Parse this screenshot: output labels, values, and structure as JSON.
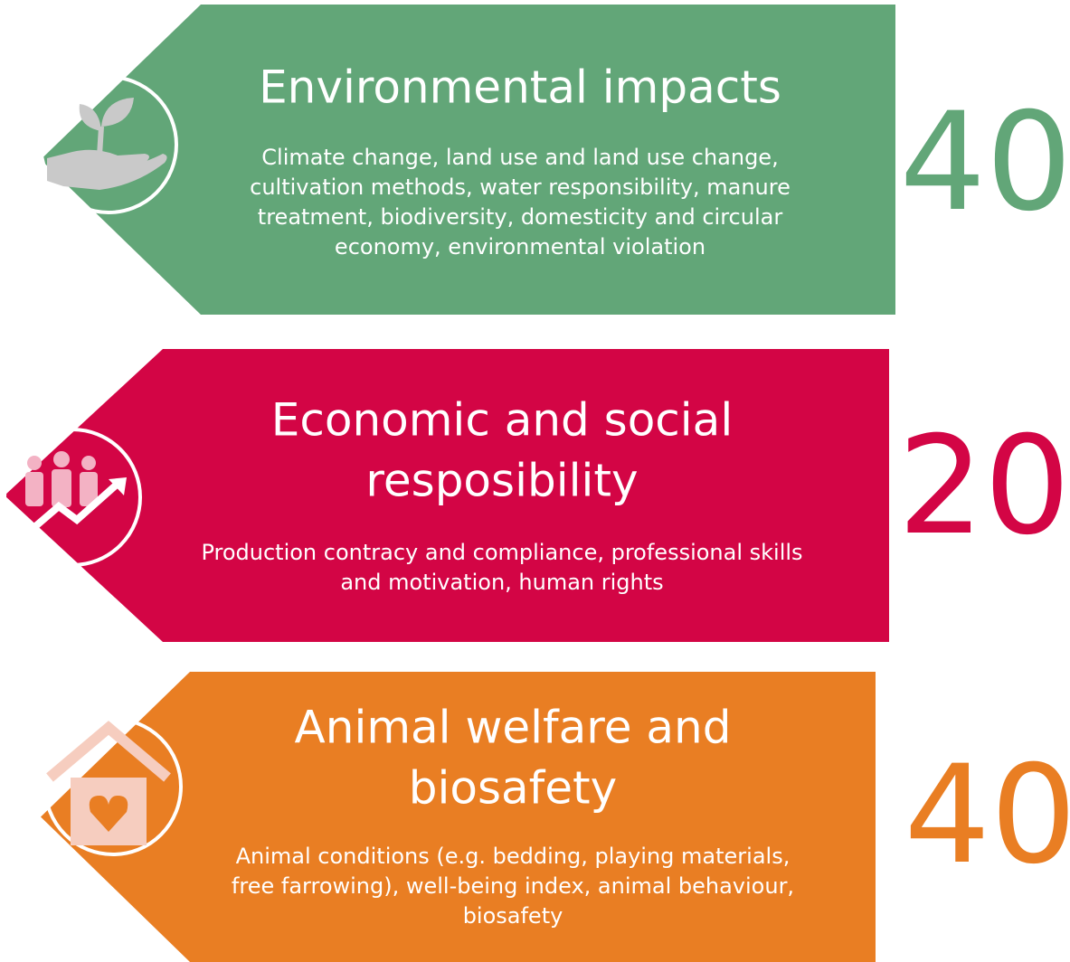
{
  "panels": [
    {
      "title_lines": [
        "Environmental impacts"
      ],
      "description_lines": [
        "Climate change, land use and land use change,",
        "cultivation methods, water responsibility, manure",
        "treatment, biodiversity, domesticity and circular",
        "economy, environmental violation"
      ],
      "score": 40,
      "color": "#62a678"
    },
    {
      "title_lines": [
        "Economic and social",
        "resposibility"
      ],
      "description_lines": [
        "Production contracy and compliance, professional skills",
        "and motivation, human rights"
      ],
      "score": 20,
      "color": "#d30545"
    },
    {
      "title_lines": [
        "Animal welfare and",
        "biosafety"
      ],
      "description_lines": [
        "Animal conditions (e.g. bedding, playing materials,",
        "free farrowing), well-being index, animal behaviour,",
        "biosafety"
      ],
      "score": 40,
      "color": "#e97e23"
    }
  ]
}
